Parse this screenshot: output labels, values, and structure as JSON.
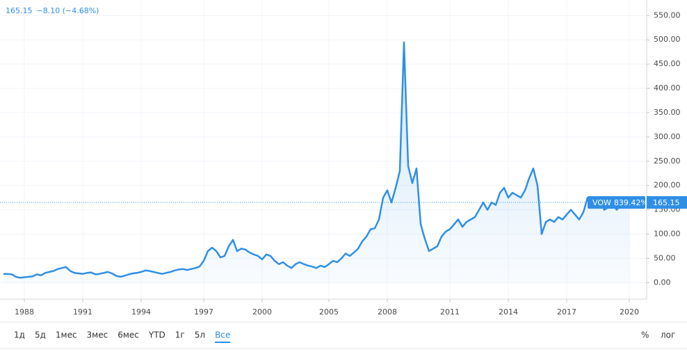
{
  "chart_data": {
    "type": "line",
    "header": {
      "last": "165.15",
      "change": "−8.10 (−4.68%)"
    },
    "categories": [
      null,
      null,
      null,
      null,
      null,
      "1988",
      null,
      null,
      null,
      null,
      null,
      null,
      null,
      null,
      null,
      null,
      null,
      null,
      null,
      "1991",
      null,
      null,
      null,
      null,
      null,
      null,
      null,
      null,
      null,
      null,
      null,
      null,
      null,
      "1994",
      null,
      null,
      null,
      null,
      null,
      null,
      null,
      null,
      null,
      null,
      null,
      null,
      null,
      null,
      "1997",
      null,
      null,
      null,
      null,
      null,
      null,
      null,
      null,
      null,
      null,
      null,
      null,
      null,
      "2000",
      null,
      null,
      null,
      null,
      null,
      null,
      null,
      null,
      null,
      null,
      null,
      null,
      null,
      null,
      null,
      "2005",
      null,
      null,
      null,
      null,
      null,
      null,
      null,
      null,
      null,
      null,
      null,
      null,
      null,
      "2008",
      null,
      null,
      null,
      null,
      null,
      null,
      null,
      null,
      null,
      null,
      null,
      null,
      null,
      null,
      "2011",
      null,
      null,
      null,
      null,
      null,
      null,
      null,
      null,
      null,
      null,
      null,
      null,
      null,
      "2014",
      null,
      null,
      null,
      null,
      null,
      null,
      null,
      null,
      null,
      null,
      null,
      null,
      null,
      "2017",
      null,
      null,
      null,
      null,
      null,
      null,
      null,
      null,
      null,
      null,
      null,
      null,
      null,
      null,
      "2020"
    ],
    "series": [
      {
        "name": "VOW",
        "return_label": "839.42%",
        "color": "#2f8fe6",
        "values": [
          18,
          18,
          17,
          12,
          10,
          11,
          12,
          13,
          17,
          15,
          20,
          22,
          24,
          28,
          30,
          32,
          24,
          20,
          19,
          18,
          20,
          21,
          17,
          18,
          20,
          22,
          19,
          14,
          12,
          14,
          17,
          19,
          20,
          22,
          25,
          24,
          22,
          20,
          18,
          20,
          22,
          25,
          27,
          28,
          26,
          28,
          30,
          33,
          45,
          65,
          72,
          65,
          52,
          55,
          75,
          88,
          65,
          70,
          68,
          62,
          58,
          55,
          48,
          58,
          55,
          45,
          38,
          42,
          35,
          30,
          38,
          42,
          38,
          35,
          33,
          30,
          35,
          32,
          38,
          45,
          42,
          50,
          60,
          55,
          62,
          70,
          85,
          95,
          110,
          112,
          130,
          175,
          190,
          165,
          195,
          230,
          495,
          240,
          205,
          235,
          120,
          90,
          65,
          70,
          75,
          95,
          105,
          110,
          120,
          130,
          115,
          125,
          130,
          135,
          150,
          165,
          150,
          165,
          160,
          185,
          195,
          175,
          185,
          180,
          175,
          190,
          215,
          235,
          200,
          100,
          125,
          130,
          125,
          135,
          130,
          140,
          150,
          140,
          130,
          145,
          175,
          170,
          160,
          175,
          150,
          155,
          160,
          150,
          160,
          170,
          165.15
        ]
      }
    ],
    "price_label": "165.15",
    "ylim": [
      -34,
      582
    ],
    "yticks": [
      {
        "value": 0,
        "label": "0.00"
      },
      {
        "value": 50,
        "label": "50.00"
      },
      {
        "value": 100,
        "label": "100.00"
      },
      {
        "value": 150,
        "label": "150.00"
      },
      {
        "value": 200,
        "label": "200.00"
      },
      {
        "value": 250,
        "label": "250.00"
      },
      {
        "value": 300,
        "label": "300.00"
      },
      {
        "value": 350,
        "label": "350.00"
      },
      {
        "value": 400,
        "label": "400.00"
      },
      {
        "value": 450,
        "label": "450.00"
      },
      {
        "value": 500,
        "label": "500.00"
      },
      {
        "value": 550,
        "label": "550.00"
      }
    ],
    "grid": true,
    "toolbar": {
      "ranges": [
        "1д",
        "5д",
        "1мес",
        "3мес",
        "6мес",
        "YTD",
        "1г",
        "5л",
        "Все"
      ],
      "selected_range": 8,
      "scale_buttons": [
        "%",
        "лог"
      ]
    }
  }
}
